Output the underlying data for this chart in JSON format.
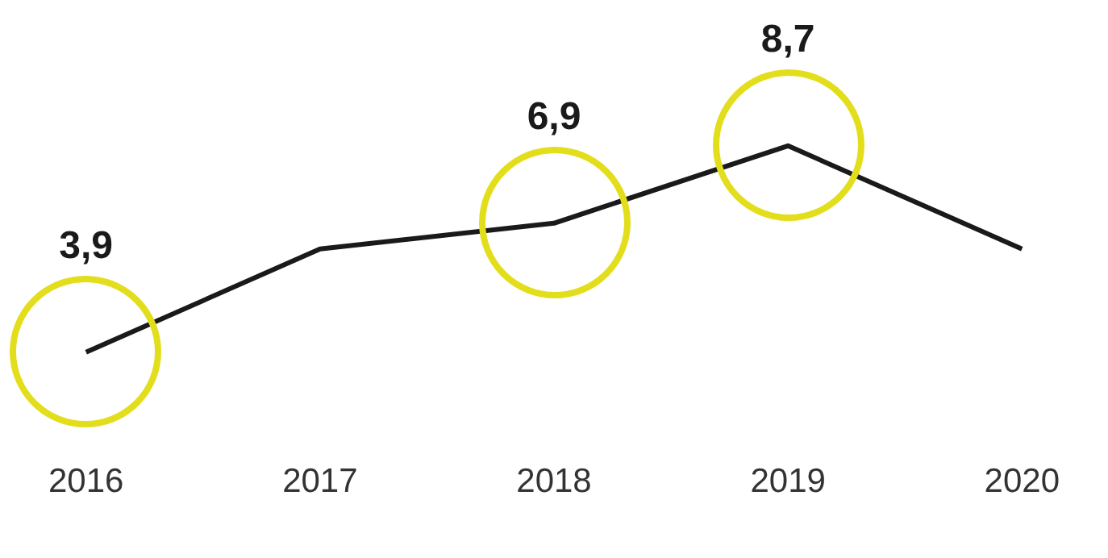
{
  "chart_data": {
    "type": "line",
    "categories": [
      "2016",
      "2017",
      "2018",
      "2019",
      "2020"
    ],
    "series": [
      {
        "color": "#1a1a1a",
        "values": [
          3.9,
          6.3,
          6.9,
          8.7,
          6.3
        ],
        "value_labels": [
          "3,9",
          null,
          "6,9",
          "8,7",
          null
        ]
      }
    ],
    "grid": false,
    "legend": false
  }
}
